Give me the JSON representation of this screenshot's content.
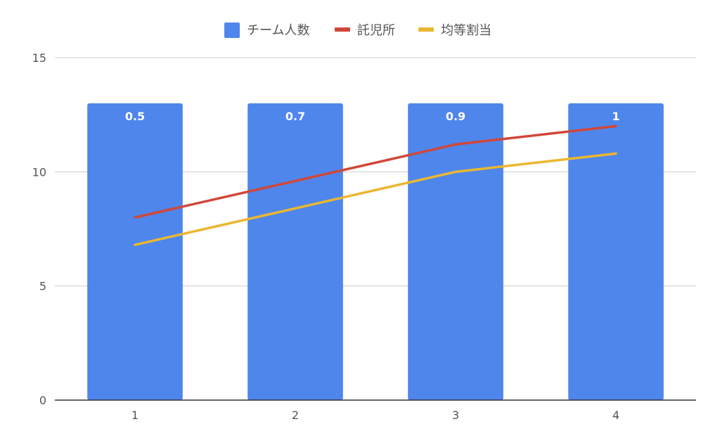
{
  "chart_data": {
    "type": "bar",
    "categories": [
      "1",
      "2",
      "3",
      "4"
    ],
    "yticks": [
      "0",
      "5",
      "10",
      "15"
    ],
    "ylim": [
      0,
      15
    ],
    "grid": true,
    "legend_position": "top",
    "series": [
      {
        "name": "チーム人数",
        "type": "bar",
        "color": "#4F86EC",
        "values": [
          13,
          13,
          13,
          13
        ],
        "data_labels": [
          "0.5",
          "0.7",
          "0.9",
          "1"
        ]
      },
      {
        "name": "託児所",
        "type": "line",
        "color": "#D0473A",
        "values": [
          8.0,
          9.6,
          11.2,
          12.0
        ]
      },
      {
        "name": "均等割当",
        "type": "line",
        "color": "#EBB731",
        "values": [
          6.8,
          8.4,
          10.0,
          10.8
        ]
      }
    ]
  }
}
